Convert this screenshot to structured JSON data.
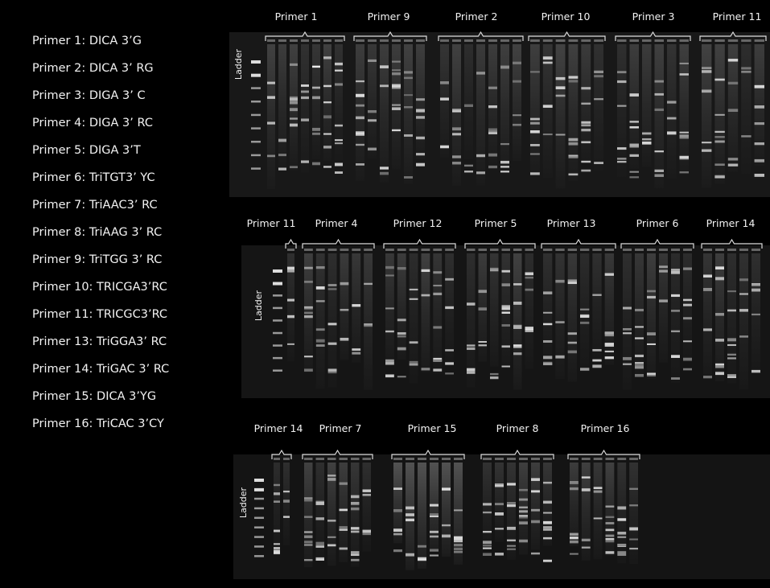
{
  "legend": [
    "Primer 1: DICA 3’G",
    "Primer 2: DICA 3’ RG",
    "Primer 3: DIGA 3’ C",
    "Primer 4: DIGA 3’ RC",
    "Primer 5: DIGA 3’T",
    "Primer 6: TriTGT3’ YC",
    "Primer 7: TriAAC3’ RC",
    "Primer 8: TriAAG 3’ RC",
    "Primer 9: TriTGG 3’ RC",
    "Primer 10: TRICGA3’RC",
    "Primer 11: TRICGC3’RC",
    "Primer 13: TriGGA3’ RC",
    "Primer 14: TriGAC 3’ RC",
    "Primer 15: DICA 3’YG",
    "Primer 16: TriCAC 3’CY"
  ],
  "panels": [
    {
      "ladder": "Ladder",
      "groups": [
        "Primer 1",
        "Primer 9",
        "Primer 2",
        "Primer 10",
        "Primer 3",
        "Primer 11"
      ]
    },
    {
      "ladder": "Ladder",
      "groups": [
        "Primer 11",
        "Primer 4",
        "Primer 12",
        "Primer 5",
        "Primer 13",
        "Primer 6",
        "Primer 14"
      ]
    },
    {
      "ladder": "Ladder",
      "groups": [
        "Primer 14",
        "Primer 7",
        "Primer 15",
        "Primer 8",
        "Primer 16"
      ]
    }
  ]
}
